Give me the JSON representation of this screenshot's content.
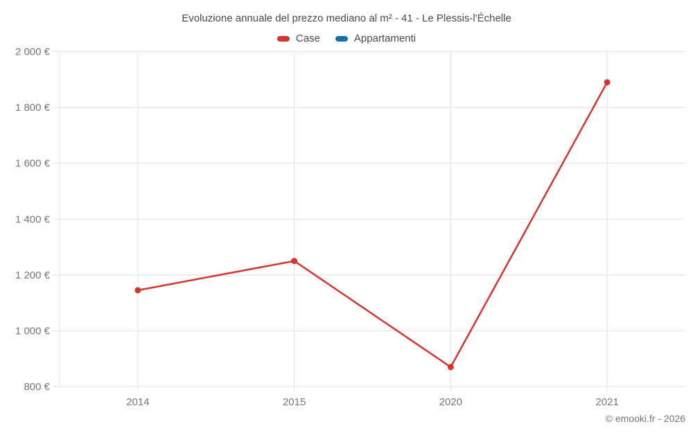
{
  "header": {
    "title": "Evoluzione annuale del prezzo mediano al m² - 41 - Le Plessis-l'Échelle"
  },
  "legend": {
    "items": [
      {
        "label": "Case",
        "color": "#d5332d",
        "swatch_icon": "legend-swatch"
      },
      {
        "label": "Appartamenti",
        "color": "#1273a2",
        "swatch_icon": "legend-swatch"
      }
    ]
  },
  "footer": {
    "text": "© emooki.fr - 2026"
  },
  "chart_data": {
    "type": "line",
    "title": "Evoluzione annuale del prezzo mediano al m² - 41 - Le Plessis-l'Échelle",
    "categories": [
      "2014",
      "2015",
      "2020",
      "2021"
    ],
    "series": [
      {
        "name": "Case",
        "color": "#d5332d",
        "values": [
          1145,
          1250,
          870,
          1890
        ]
      },
      {
        "name": "Appartamenti",
        "color": "#1273a2",
        "values": [
          null,
          null,
          null,
          null
        ]
      }
    ],
    "xlabel": "",
    "ylabel": "",
    "ylim": [
      800,
      2000
    ],
    "ytick_values": [
      800,
      1000,
      1200,
      1400,
      1600,
      1800,
      2000
    ],
    "ytick_labels": [
      "800 €",
      "1 000 €",
      "1 200 €",
      "1 400 €",
      "1 600 €",
      "1 800 €",
      "2 000 €"
    ],
    "grid": true,
    "legend_position": "top",
    "grid_color": "#e2e2e2",
    "tick_label_color": "#757575",
    "title_color": "#4a4a4a",
    "line_width": 2.5,
    "point_radius": 4.5
  }
}
